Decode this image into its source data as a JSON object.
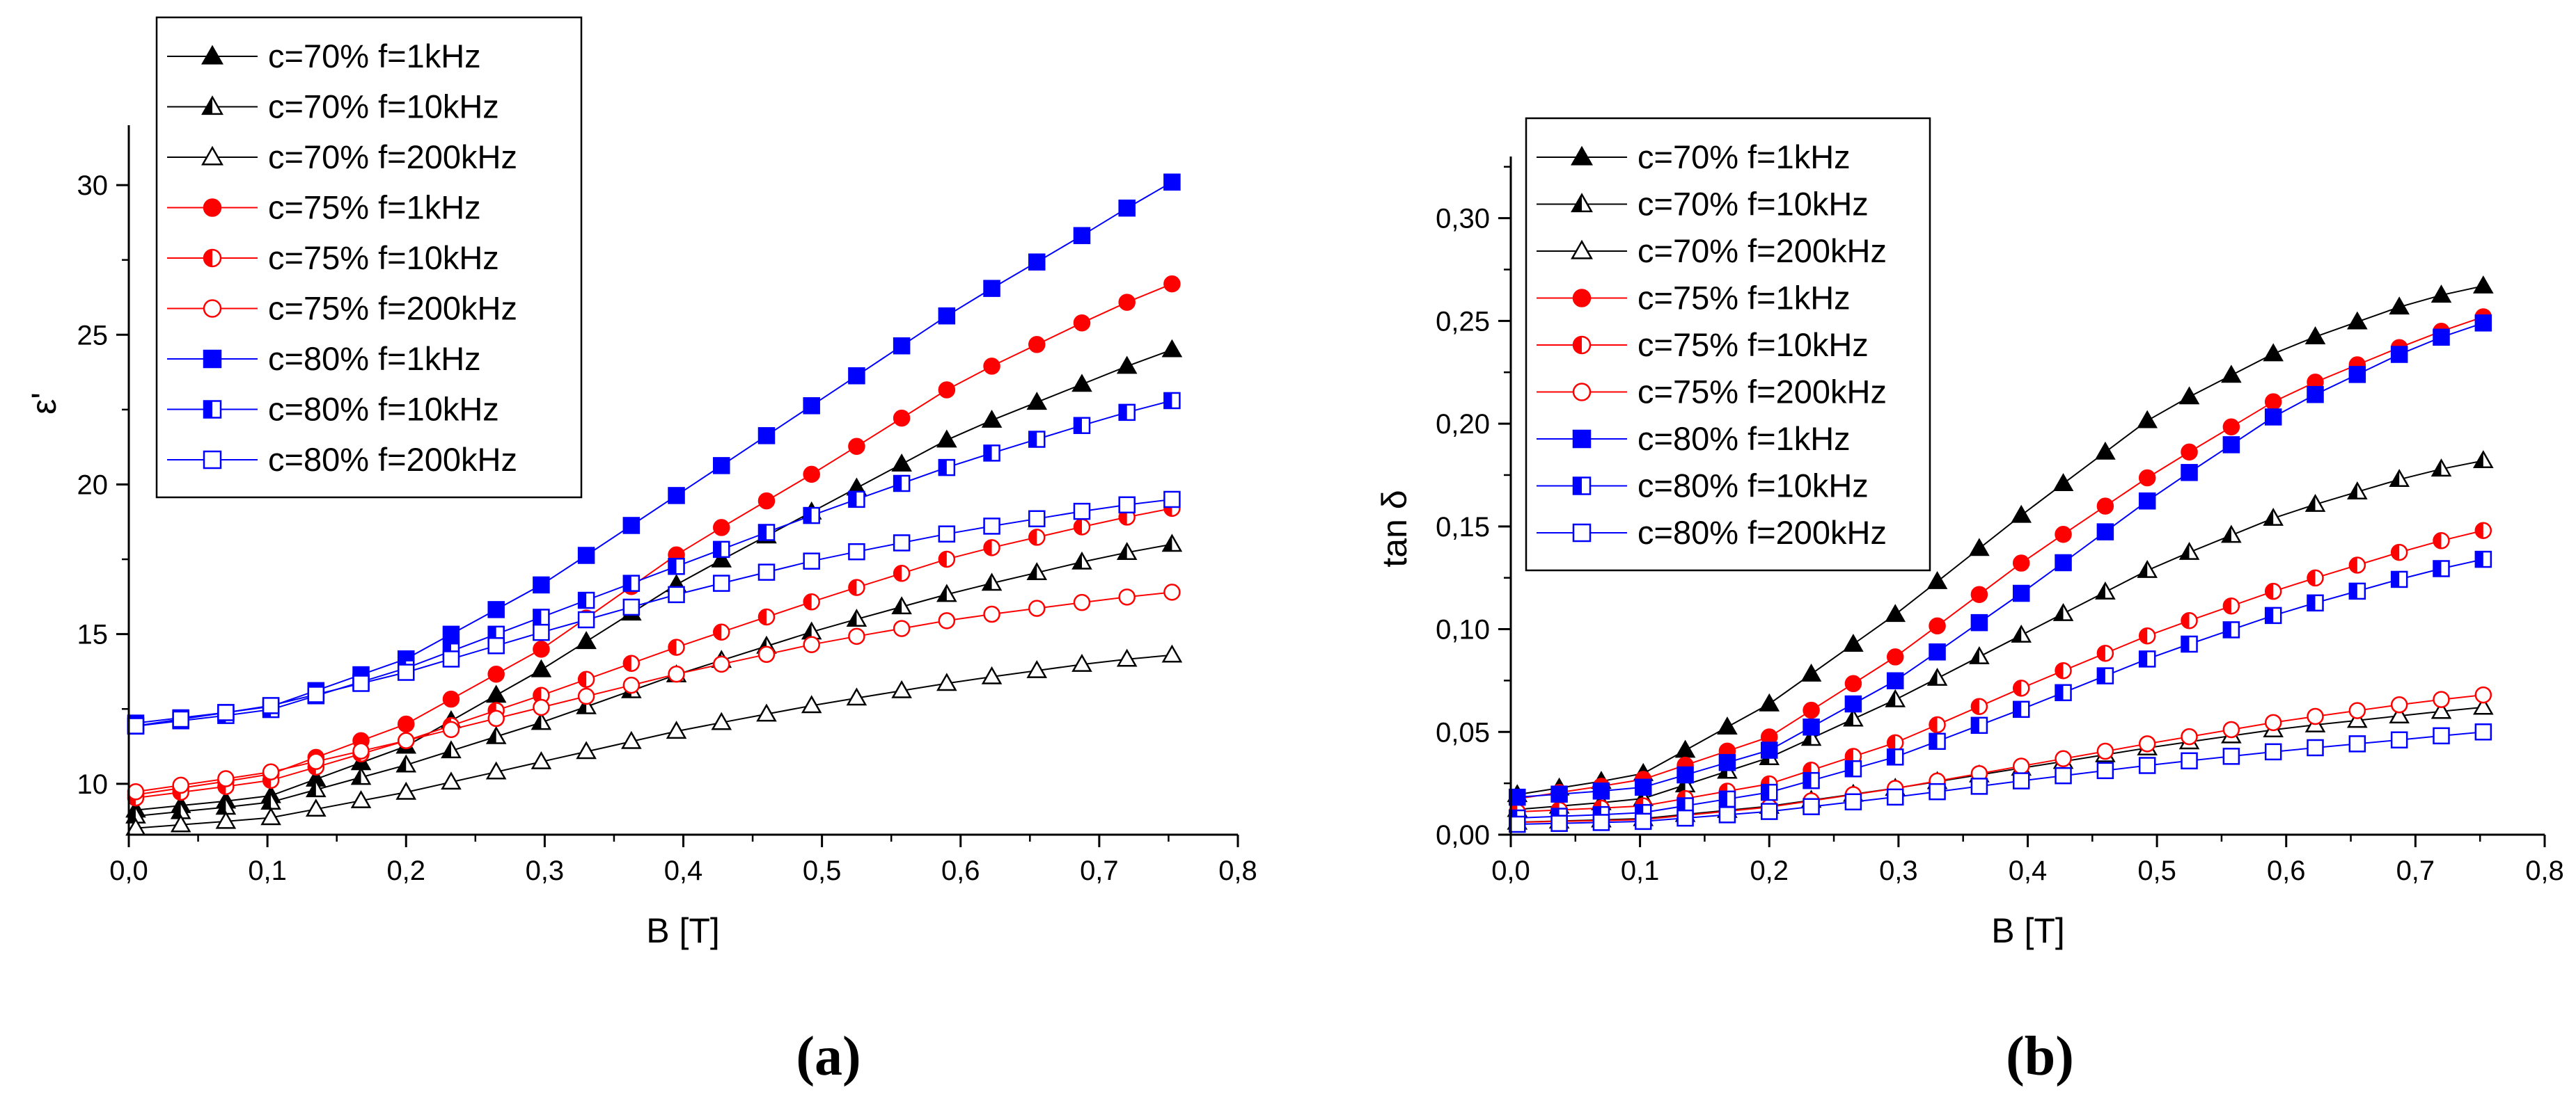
{
  "chart_data": [
    {
      "type": "line",
      "panel_label": "(a)",
      "xlabel": "B [T]",
      "ylabel": "ε'",
      "xlim": [
        0,
        0.8
      ],
      "ylim": [
        8.3,
        32.0
      ],
      "x_ticks": [
        "0,0",
        "0,1",
        "0,2",
        "0,3",
        "0,4",
        "0,5",
        "0,6",
        "0,7",
        "0,8"
      ],
      "y_ticks": [
        "10",
        "15",
        "20",
        "25",
        "30"
      ],
      "y_tick_values": [
        10,
        15,
        20,
        25,
        30
      ],
      "legend_position": "top-left",
      "series": [
        {
          "name": "c=70% f=1kHz",
          "color": "#000000",
          "marker": "triangle",
          "fill": "full",
          "start": 9.1,
          "end": 24.5,
          "shape": [
            [
              0,
              0
            ],
            [
              0.1,
              0.03
            ],
            [
              0.2,
              0.14
            ],
            [
              0.3,
              0.31
            ],
            [
              0.4,
              0.5
            ],
            [
              0.5,
              0.66
            ],
            [
              0.6,
              0.82
            ],
            [
              0.7,
              0.94
            ],
            [
              0.75,
              1.0
            ]
          ]
        },
        {
          "name": "c=70% f=10kHz",
          "color": "#000000",
          "marker": "triangle",
          "fill": "half",
          "start": 8.9,
          "end": 18.0,
          "shape": [
            [
              0,
              0
            ],
            [
              0.1,
              0.05
            ],
            [
              0.2,
              0.19
            ],
            [
              0.3,
              0.35
            ],
            [
              0.4,
              0.53
            ],
            [
              0.5,
              0.69
            ],
            [
              0.6,
              0.83
            ],
            [
              0.7,
              0.95
            ],
            [
              0.75,
              1.0
            ]
          ]
        },
        {
          "name": "c=70% f=200kHz",
          "color": "#000000",
          "marker": "triangle",
          "fill": "open",
          "start": 8.5,
          "end": 14.3,
          "shape": [
            [
              0,
              0
            ],
            [
              0.1,
              0.06
            ],
            [
              0.2,
              0.21
            ],
            [
              0.3,
              0.39
            ],
            [
              0.4,
              0.57
            ],
            [
              0.5,
              0.72
            ],
            [
              0.6,
              0.85
            ],
            [
              0.7,
              0.96
            ],
            [
              0.75,
              1.0
            ]
          ]
        },
        {
          "name": "c=75% f=1kHz",
          "color": "#ff0000",
          "marker": "circle",
          "fill": "full",
          "start": 9.6,
          "end": 26.7,
          "shape": [
            [
              0,
              0
            ],
            [
              0.1,
              0.04
            ],
            [
              0.2,
              0.14
            ],
            [
              0.3,
              0.29
            ],
            [
              0.4,
              0.48
            ],
            [
              0.5,
              0.64
            ],
            [
              0.6,
              0.81
            ],
            [
              0.7,
              0.94
            ],
            [
              0.75,
              1.0
            ]
          ]
        },
        {
          "name": "c=75% f=10kHz",
          "color": "#ff0000",
          "marker": "circle",
          "fill": "half",
          "start": 9.5,
          "end": 19.2,
          "shape": [
            [
              0,
              0
            ],
            [
              0.1,
              0.06
            ],
            [
              0.2,
              0.2
            ],
            [
              0.3,
              0.36
            ],
            [
              0.4,
              0.53
            ],
            [
              0.5,
              0.69
            ],
            [
              0.6,
              0.84
            ],
            [
              0.7,
              0.95
            ],
            [
              0.75,
              1.0
            ]
          ]
        },
        {
          "name": "c=75% f=200kHz",
          "color": "#ff0000",
          "marker": "circle",
          "fill": "open",
          "start": 9.7,
          "end": 16.4,
          "shape": [
            [
              0,
              0
            ],
            [
              0.1,
              0.1
            ],
            [
              0.2,
              0.26
            ],
            [
              0.3,
              0.43
            ],
            [
              0.4,
              0.6
            ],
            [
              0.5,
              0.75
            ],
            [
              0.6,
              0.87
            ],
            [
              0.7,
              0.96
            ],
            [
              0.75,
              1.0
            ]
          ]
        },
        {
          "name": "c=80% f=1kHz",
          "color": "#0000ff",
          "marker": "square",
          "fill": "full",
          "start": 12.0,
          "end": 30.1,
          "shape": [
            [
              0,
              0
            ],
            [
              0.1,
              0.03
            ],
            [
              0.2,
              0.12
            ],
            [
              0.3,
              0.26
            ],
            [
              0.4,
              0.43
            ],
            [
              0.5,
              0.6
            ],
            [
              0.6,
              0.77
            ],
            [
              0.7,
              0.92
            ],
            [
              0.75,
              1.0
            ]
          ]
        },
        {
          "name": "c=80% f=10kHz",
          "color": "#0000ff",
          "marker": "square",
          "fill": "half",
          "start": 11.9,
          "end": 22.8,
          "shape": [
            [
              0,
              0
            ],
            [
              0.1,
              0.05
            ],
            [
              0.2,
              0.18
            ],
            [
              0.3,
              0.34
            ],
            [
              0.4,
              0.5
            ],
            [
              0.5,
              0.66
            ],
            [
              0.6,
              0.81
            ],
            [
              0.7,
              0.94
            ],
            [
              0.75,
              1.0
            ]
          ]
        },
        {
          "name": "c=80% f=200kHz",
          "color": "#0000ff",
          "marker": "square",
          "fill": "open",
          "start": 11.9,
          "end": 19.5,
          "shape": [
            [
              0,
              0
            ],
            [
              0.1,
              0.09
            ],
            [
              0.2,
              0.24
            ],
            [
              0.3,
              0.42
            ],
            [
              0.4,
              0.59
            ],
            [
              0.5,
              0.74
            ],
            [
              0.6,
              0.86
            ],
            [
              0.7,
              0.96
            ],
            [
              0.75,
              1.0
            ]
          ]
        }
      ]
    },
    {
      "type": "line",
      "panel_label": "(b)",
      "xlabel": "B [T]",
      "ylabel": "tan δ",
      "xlim": [
        0,
        0.8
      ],
      "ylim": [
        0,
        0.33
      ],
      "x_ticks": [
        "0,0",
        "0,1",
        "0,2",
        "0,3",
        "0,4",
        "0,5",
        "0,6",
        "0,7",
        "0,8"
      ],
      "y_ticks": [
        "0,00",
        "0,05",
        "0,10",
        "0,15",
        "0,20",
        "0,25",
        "0,30"
      ],
      "y_tick_values": [
        0,
        0.05,
        0.1,
        0.15,
        0.2,
        0.25,
        0.3
      ],
      "legend_position": "top-left",
      "series": [
        {
          "name": "c=70% f=1kHz",
          "color": "#000000",
          "marker": "triangle",
          "fill": "full",
          "start": 0.019,
          "end": 0.267,
          "shape": [
            [
              0,
              0
            ],
            [
              0.1,
              0.04
            ],
            [
              0.2,
              0.18
            ],
            [
              0.3,
              0.36
            ],
            [
              0.4,
              0.56
            ],
            [
              0.5,
              0.75
            ],
            [
              0.6,
              0.88
            ],
            [
              0.7,
              0.97
            ],
            [
              0.75,
              1.0
            ]
          ]
        },
        {
          "name": "c=70% f=10kHz",
          "color": "#000000",
          "marker": "triangle",
          "fill": "half",
          "start": 0.012,
          "end": 0.182,
          "shape": [
            [
              0,
              0
            ],
            [
              0.1,
              0.03
            ],
            [
              0.2,
              0.15
            ],
            [
              0.3,
              0.32
            ],
            [
              0.4,
              0.51
            ],
            [
              0.5,
              0.7
            ],
            [
              0.6,
              0.85
            ],
            [
              0.7,
              0.96
            ],
            [
              0.75,
              1.0
            ]
          ]
        },
        {
          "name": "c=70% f=200kHz",
          "color": "#000000",
          "marker": "triangle",
          "fill": "open",
          "start": 0.006,
          "end": 0.062,
          "shape": [
            [
              0,
              0
            ],
            [
              0.1,
              0.03
            ],
            [
              0.2,
              0.14
            ],
            [
              0.3,
              0.3
            ],
            [
              0.4,
              0.48
            ],
            [
              0.5,
              0.66
            ],
            [
              0.6,
              0.82
            ],
            [
              0.7,
              0.94
            ],
            [
              0.75,
              1.0
            ]
          ]
        },
        {
          "name": "c=75% f=1kHz",
          "color": "#ff0000",
          "marker": "circle",
          "fill": "full",
          "start": 0.017,
          "end": 0.252,
          "shape": [
            [
              0,
              0
            ],
            [
              0.1,
              0.04
            ],
            [
              0.2,
              0.13
            ],
            [
              0.3,
              0.3
            ],
            [
              0.4,
              0.5
            ],
            [
              0.5,
              0.68
            ],
            [
              0.6,
              0.84
            ],
            [
              0.7,
              0.95
            ],
            [
              0.75,
              1.0
            ]
          ]
        },
        {
          "name": "c=75% f=10kHz",
          "color": "#ff0000",
          "marker": "circle",
          "fill": "half",
          "start": 0.011,
          "end": 0.148,
          "shape": [
            [
              0,
              0
            ],
            [
              0.1,
              0.02
            ],
            [
              0.2,
              0.1
            ],
            [
              0.3,
              0.25
            ],
            [
              0.4,
              0.45
            ],
            [
              0.5,
              0.64
            ],
            [
              0.6,
              0.8
            ],
            [
              0.7,
              0.94
            ],
            [
              0.75,
              1.0
            ]
          ]
        },
        {
          "name": "c=75% f=200kHz",
          "color": "#ff0000",
          "marker": "circle",
          "fill": "open",
          "start": 0.006,
          "end": 0.068,
          "shape": [
            [
              0,
              0
            ],
            [
              0.1,
              0.02
            ],
            [
              0.2,
              0.12
            ],
            [
              0.3,
              0.27
            ],
            [
              0.4,
              0.45
            ],
            [
              0.5,
              0.63
            ],
            [
              0.6,
              0.8
            ],
            [
              0.7,
              0.94
            ],
            [
              0.75,
              1.0
            ]
          ]
        },
        {
          "name": "c=80% f=1kHz",
          "color": "#0000ff",
          "marker": "square",
          "fill": "full",
          "start": 0.018,
          "end": 0.249,
          "shape": [
            [
              0,
              0
            ],
            [
              0.1,
              0.02
            ],
            [
              0.2,
              0.1
            ],
            [
              0.3,
              0.25
            ],
            [
              0.4,
              0.44
            ],
            [
              0.5,
              0.64
            ],
            [
              0.6,
              0.82
            ],
            [
              0.7,
              0.95
            ],
            [
              0.75,
              1.0
            ]
          ]
        },
        {
          "name": "c=80% f=10kHz",
          "color": "#0000ff",
          "marker": "square",
          "fill": "half",
          "start": 0.008,
          "end": 0.134,
          "shape": [
            [
              0,
              0
            ],
            [
              0.1,
              0.02
            ],
            [
              0.2,
              0.1
            ],
            [
              0.3,
              0.24
            ],
            [
              0.4,
              0.43
            ],
            [
              0.5,
              0.63
            ],
            [
              0.6,
              0.8
            ],
            [
              0.7,
              0.94
            ],
            [
              0.75,
              1.0
            ]
          ]
        },
        {
          "name": "c=80% f=200kHz",
          "color": "#0000ff",
          "marker": "square",
          "fill": "open",
          "start": 0.005,
          "end": 0.05,
          "shape": [
            [
              0,
              0
            ],
            [
              0.1,
              0.03
            ],
            [
              0.2,
              0.14
            ],
            [
              0.3,
              0.3
            ],
            [
              0.4,
              0.48
            ],
            [
              0.5,
              0.65
            ],
            [
              0.6,
              0.8
            ],
            [
              0.7,
              0.93
            ],
            [
              0.75,
              1.0
            ]
          ]
        }
      ]
    }
  ]
}
